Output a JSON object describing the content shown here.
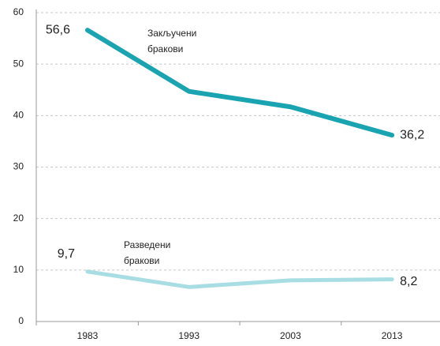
{
  "chart_data": {
    "type": "line",
    "categories": [
      "1983",
      "1993",
      "2003",
      "2013"
    ],
    "series": [
      {
        "name": "Закључени бракови",
        "color": "#1aa3b0",
        "values": [
          56.6,
          44.7,
          41.7,
          36.2
        ],
        "value_labels": [
          "56,6",
          null,
          null,
          "36,2"
        ]
      },
      {
        "name": "Разведени бракови",
        "color": "#a8dde3",
        "values": [
          9.7,
          6.7,
          8.0,
          8.2
        ],
        "value_labels": [
          "9,7",
          null,
          null,
          "8,2"
        ]
      }
    ],
    "ylim": [
      0,
      60
    ],
    "yticks": [
      0,
      10,
      20,
      30,
      40,
      50,
      60
    ],
    "grid": true
  }
}
